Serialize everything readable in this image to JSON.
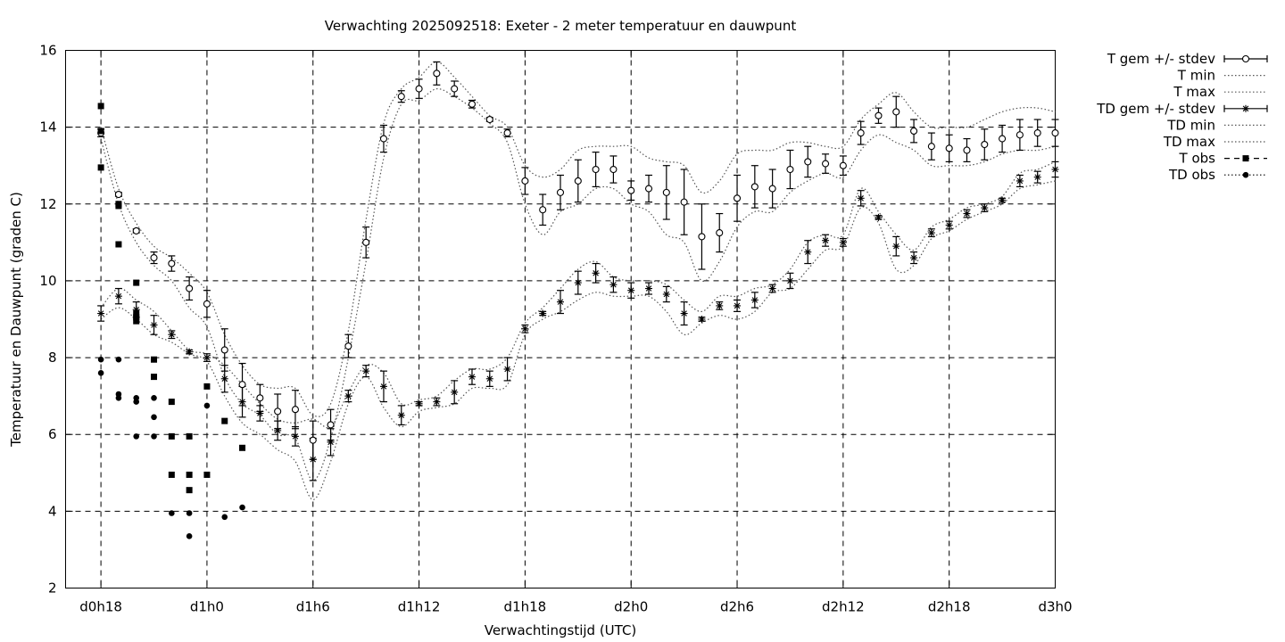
{
  "chart_data": {
    "type": "line",
    "title": "Verwachting 2025092518: Exeter - 2 meter temperatuur en dauwpunt",
    "xlabel": "Verwachtingstijd (UTC)",
    "ylabel": "Temperatuur en Dauwpunt (graden C)",
    "xunit": "hours since d0h18",
    "xlim": [
      -2,
      54
    ],
    "ylim": [
      2,
      16
    ],
    "xticks": [
      {
        "x": 0,
        "label": "d0h18"
      },
      {
        "x": 6,
        "label": "d1h0"
      },
      {
        "x": 12,
        "label": "d1h6"
      },
      {
        "x": 18,
        "label": "d1h12"
      },
      {
        "x": 24,
        "label": "d1h18"
      },
      {
        "x": 30,
        "label": "d2h0"
      },
      {
        "x": 36,
        "label": "d2h6"
      },
      {
        "x": 42,
        "label": "d2h12"
      },
      {
        "x": 48,
        "label": "d2h18"
      },
      {
        "x": 54,
        "label": "d3h0"
      }
    ],
    "yticks": [
      2,
      4,
      6,
      8,
      10,
      12,
      14,
      16
    ],
    "grid": true,
    "legend_position": "outside-right",
    "legend": [
      "T gem +/- stdev",
      "T min",
      "T max",
      "TD gem +/- stdev",
      "TD min",
      "TD max",
      "T obs",
      "TD obs"
    ],
    "x": [
      0,
      1,
      2,
      3,
      4,
      5,
      6,
      7,
      8,
      9,
      10,
      11,
      12,
      13,
      14,
      15,
      16,
      17,
      18,
      19,
      20,
      21,
      22,
      23,
      24,
      25,
      26,
      27,
      28,
      29,
      30,
      31,
      32,
      33,
      34,
      35,
      36,
      37,
      38,
      39,
      40,
      41,
      42,
      43,
      44,
      45,
      46,
      47,
      48,
      49,
      50,
      51,
      52,
      53,
      54
    ],
    "T_mean": [
      13.85,
      12.25,
      11.3,
      10.6,
      10.45,
      9.8,
      9.4,
      8.2,
      7.3,
      6.95,
      6.6,
      6.65,
      5.85,
      6.25,
      8.3,
      11.0,
      13.7,
      14.8,
      15.0,
      15.4,
      15.0,
      14.6,
      14.2,
      13.85,
      12.6,
      11.85,
      12.3,
      12.6,
      12.9,
      12.9,
      12.35,
      12.4,
      12.3,
      12.05,
      11.15,
      11.25,
      12.15,
      12.45,
      12.4,
      12.9,
      13.1,
      13.05,
      13.0,
      13.85,
      14.3,
      14.4,
      13.9,
      13.5,
      13.45,
      13.4,
      13.55,
      13.7,
      13.8,
      13.85,
      13.85
    ],
    "T_stdev": [
      0.1,
      0.05,
      0.05,
      0.15,
      0.2,
      0.3,
      0.35,
      0.55,
      0.55,
      0.35,
      0.45,
      0.5,
      0.5,
      0.4,
      0.3,
      0.4,
      0.35,
      0.15,
      0.25,
      0.3,
      0.2,
      0.1,
      0.05,
      0.1,
      0.35,
      0.4,
      0.45,
      0.55,
      0.45,
      0.35,
      0.25,
      0.35,
      0.7,
      0.85,
      0.85,
      0.5,
      0.6,
      0.55,
      0.5,
      0.5,
      0.4,
      0.25,
      0.25,
      0.3,
      0.2,
      0.4,
      0.3,
      0.35,
      0.35,
      0.3,
      0.4,
      0.35,
      0.4,
      0.35,
      0.35
    ],
    "T_min": [
      13.7,
      12.0,
      11.0,
      10.4,
      10.0,
      9.3,
      8.8,
      7.5,
      6.8,
      6.5,
      6.0,
      5.9,
      4.8,
      5.9,
      8.0,
      10.5,
      13.2,
      14.6,
      14.7,
      15.0,
      14.8,
      14.5,
      14.1,
      13.6,
      12.0,
      11.2,
      11.8,
      12.0,
      12.4,
      12.4,
      12.0,
      11.8,
      11.2,
      11.0,
      10.0,
      10.5,
      11.4,
      11.8,
      11.8,
      12.3,
      12.6,
      12.8,
      12.7,
      13.4,
      13.8,
      13.6,
      13.4,
      13.0,
      13.0,
      13.0,
      13.1,
      13.3,
      13.4,
      13.4,
      13.5
    ],
    "T_max": [
      14.0,
      12.4,
      11.5,
      10.9,
      10.6,
      10.2,
      9.7,
      8.6,
      7.8,
      7.3,
      7.2,
      7.2,
      6.5,
      6.8,
      8.7,
      11.6,
      14.1,
      15.0,
      15.3,
      15.7,
      15.3,
      14.8,
      14.3,
      14.0,
      13.0,
      12.7,
      12.9,
      13.4,
      13.5,
      13.5,
      13.5,
      13.2,
      13.1,
      13.0,
      12.3,
      12.6,
      13.3,
      13.4,
      13.4,
      13.6,
      13.6,
      13.5,
      13.5,
      14.2,
      14.6,
      14.9,
      14.4,
      14.0,
      14.0,
      14.0,
      14.2,
      14.4,
      14.5,
      14.5,
      14.4
    ],
    "TD_mean": [
      9.15,
      9.6,
      9.25,
      8.85,
      8.6,
      8.15,
      8.0,
      7.45,
      6.85,
      6.55,
      6.1,
      5.95,
      5.35,
      5.8,
      7.0,
      7.65,
      7.25,
      6.5,
      6.8,
      6.85,
      7.1,
      7.5,
      7.45,
      7.7,
      8.75,
      9.15,
      9.45,
      9.95,
      10.2,
      9.9,
      9.75,
      9.8,
      9.65,
      9.15,
      9.0,
      9.35,
      9.35,
      9.5,
      9.8,
      10.0,
      10.75,
      11.05,
      11.0,
      12.15,
      11.65,
      10.9,
      10.6,
      11.25,
      11.45,
      11.75,
      11.9,
      12.1,
      12.6,
      12.7,
      12.9
    ],
    "TD_stdev": [
      0.2,
      0.2,
      0.2,
      0.25,
      0.1,
      0.05,
      0.1,
      0.35,
      0.4,
      0.2,
      0.25,
      0.25,
      0.55,
      0.35,
      0.15,
      0.15,
      0.4,
      0.25,
      0.05,
      0.1,
      0.3,
      0.2,
      0.2,
      0.3,
      0.1,
      0.05,
      0.3,
      0.3,
      0.25,
      0.2,
      0.2,
      0.15,
      0.2,
      0.3,
      0.05,
      0.1,
      0.15,
      0.2,
      0.1,
      0.2,
      0.3,
      0.15,
      0.1,
      0.2,
      0.05,
      0.25,
      0.15,
      0.1,
      0.1,
      0.1,
      0.1,
      0.05,
      0.15,
      0.15,
      0.2
    ],
    "TD_min": [
      9.0,
      9.3,
      9.0,
      8.6,
      8.4,
      8.1,
      7.9,
      7.0,
      6.3,
      6.0,
      5.6,
      5.3,
      4.3,
      5.3,
      6.8,
      7.5,
      6.7,
      6.2,
      6.6,
      6.7,
      6.8,
      7.2,
      7.2,
      7.3,
      8.6,
      9.0,
      9.2,
      9.5,
      9.7,
      9.6,
      9.6,
      9.6,
      9.2,
      8.6,
      8.9,
      9.1,
      9.0,
      9.2,
      9.7,
      9.8,
      10.3,
      10.8,
      10.9,
      11.9,
      11.5,
      10.3,
      10.4,
      11.1,
      11.3,
      11.6,
      11.8,
      12.0,
      12.4,
      12.5,
      12.6
    ],
    "TD_max": [
      9.3,
      9.8,
      9.5,
      9.2,
      8.7,
      8.2,
      8.1,
      7.8,
      7.3,
      6.8,
      6.4,
      6.3,
      6.4,
      6.2,
      7.1,
      7.8,
      7.6,
      6.8,
      6.9,
      7.0,
      7.4,
      7.7,
      7.7,
      8.0,
      8.9,
      9.3,
      9.8,
      10.3,
      10.5,
      10.1,
      10.0,
      10.0,
      9.9,
      9.5,
      9.2,
      9.6,
      9.6,
      9.8,
      9.9,
      10.3,
      11.0,
      11.2,
      11.2,
      12.4,
      11.8,
      11.2,
      10.8,
      11.4,
      11.6,
      11.9,
      12.0,
      12.2,
      12.8,
      12.9,
      13.1
    ],
    "T_obs_x": [
      0,
      0,
      0,
      1,
      1,
      1,
      2,
      2,
      2,
      2,
      3,
      3,
      4,
      4,
      4,
      5,
      5,
      5,
      6,
      6,
      7,
      8
    ],
    "T_obs": [
      14.55,
      13.9,
      12.95,
      12.0,
      11.95,
      10.95,
      9.95,
      9.15,
      9.05,
      8.95,
      7.95,
      7.5,
      6.85,
      5.95,
      4.95,
      5.95,
      4.95,
      4.55,
      7.25,
      4.95,
      6.35,
      5.65
    ],
    "TD_obs_x": [
      0,
      0,
      1,
      1,
      1,
      2,
      2,
      2,
      3,
      3,
      3,
      4,
      4,
      5,
      5,
      5,
      6,
      7,
      8
    ],
    "TD_obs": [
      7.95,
      7.6,
      7.95,
      7.05,
      6.95,
      6.95,
      6.85,
      5.95,
      6.95,
      6.45,
      5.95,
      5.95,
      3.95,
      5.95,
      3.95,
      3.35,
      6.75,
      3.85,
      4.1
    ]
  }
}
